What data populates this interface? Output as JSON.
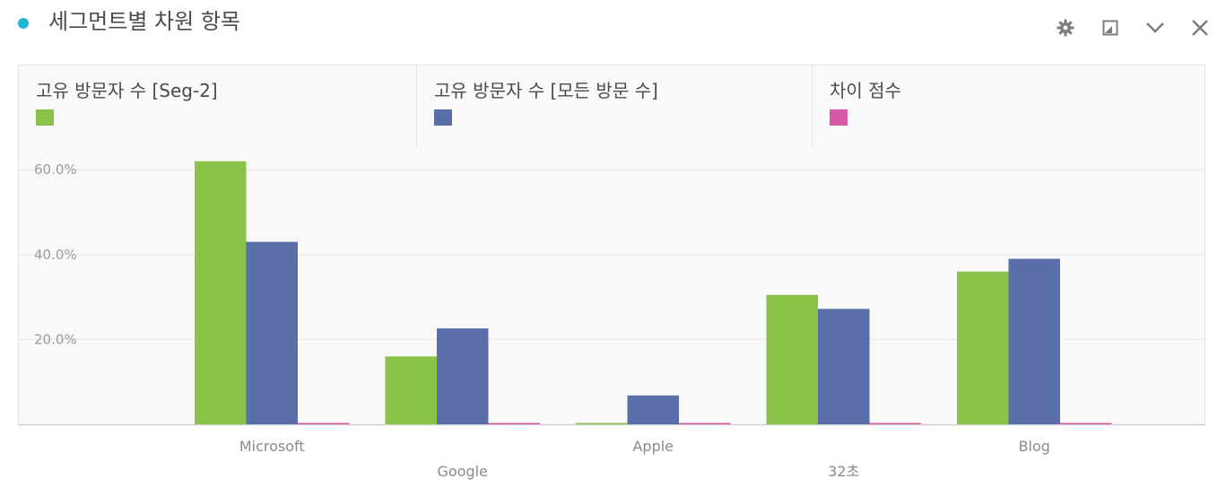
{
  "header": {
    "title": "세그먼트별 차원 항목",
    "accent_color": "#21b4d6",
    "icons": [
      "gear-icon",
      "resize-icon",
      "chevron-down-icon",
      "close-icon"
    ]
  },
  "chart_data": {
    "type": "bar",
    "categories": [
      "Microsoft",
      "Google",
      "Apple",
      "32초",
      "Blog"
    ],
    "series": [
      {
        "name": "고유 방문자 수 [Seg-2]",
        "color": "#8bc34a",
        "values": [
          62.0,
          16.0,
          0.3,
          30.5,
          36.0
        ]
      },
      {
        "name": "고유 방문자 수 [모든 방문 수]",
        "color": "#5a6eaa",
        "values": [
          43.0,
          22.6,
          6.8,
          27.2,
          39.0
        ]
      },
      {
        "name": "차이 점수",
        "color": "#d957a8",
        "values": [
          0.3,
          0.3,
          0.3,
          0.3,
          0.3
        ]
      }
    ],
    "yticks": [
      "20.0%",
      "40.0%",
      "60.0%"
    ],
    "ylim": [
      0,
      70
    ],
    "grid": true,
    "legend_position": "top"
  }
}
